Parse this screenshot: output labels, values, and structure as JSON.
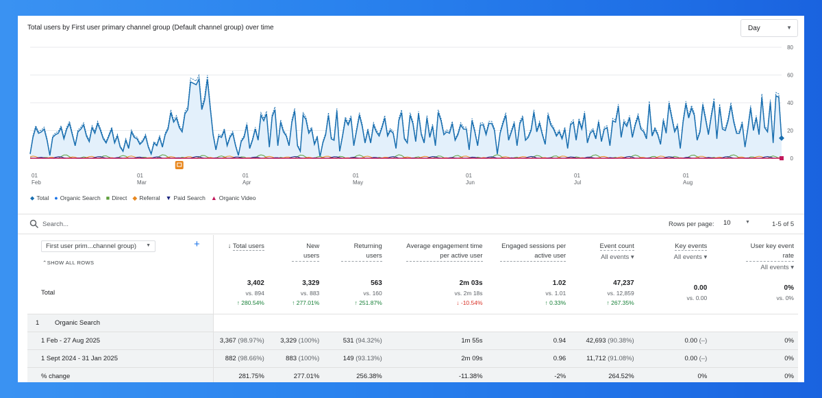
{
  "chart": {
    "title": "Total users by First user primary channel group (Default channel group) over time",
    "granularity": "Day"
  },
  "chart_data": {
    "type": "line",
    "ylim": [
      0,
      80
    ],
    "y_ticks": [
      "80",
      "60",
      "40",
      "20",
      "0"
    ],
    "x_ticks": [
      {
        "day": "01",
        "month": "Feb"
      },
      {
        "day": "01",
        "month": "Mar"
      },
      {
        "day": "01",
        "month": "Apr"
      },
      {
        "day": "01",
        "month": "May"
      },
      {
        "day": "01",
        "month": "Jun"
      },
      {
        "day": "01",
        "month": "Jul"
      },
      {
        "day": "01",
        "month": "Aug"
      }
    ],
    "series": [
      {
        "name": "Total",
        "color": "#1a6fb0",
        "values": [
          3,
          15,
          22,
          18,
          19,
          21,
          13,
          2,
          15,
          17,
          18,
          22,
          14,
          21,
          25,
          17,
          9,
          19,
          21,
          24,
          16,
          12,
          22,
          18,
          25,
          20,
          14,
          11,
          16,
          21,
          11,
          16,
          8,
          5,
          13,
          7,
          19,
          15,
          14,
          10,
          12,
          16,
          8,
          3,
          11,
          9,
          15,
          8,
          17,
          21,
          33,
          26,
          29,
          22,
          19,
          32,
          35,
          55,
          54,
          53,
          57,
          35,
          42,
          57,
          36,
          17,
          6,
          16,
          15,
          20,
          9,
          15,
          18,
          9,
          2,
          12,
          15,
          24,
          7,
          13,
          21,
          13,
          31,
          27,
          32,
          8,
          30,
          35,
          9,
          26,
          19,
          16,
          9,
          26,
          34,
          9,
          5,
          31,
          28,
          18,
          21,
          10,
          15,
          1,
          11,
          17,
          31,
          14,
          13,
          34,
          5,
          16,
          28,
          24,
          29,
          9,
          20,
          31,
          23,
          11,
          20,
          11,
          24,
          19,
          16,
          22,
          29,
          16,
          20,
          18,
          7,
          27,
          33,
          14,
          11,
          31,
          25,
          12,
          32,
          17,
          11,
          29,
          15,
          23,
          9,
          33,
          27,
          17,
          19,
          18,
          25,
          13,
          17,
          24,
          21,
          21,
          6,
          27,
          19,
          9,
          24,
          24,
          17,
          25,
          25,
          20,
          3,
          18,
          25,
          31,
          13,
          19,
          25,
          9,
          25,
          29,
          13,
          15,
          20,
          33,
          19,
          25,
          17,
          10,
          31,
          24,
          21,
          16,
          19,
          14,
          21,
          7,
          24,
          26,
          13,
          27,
          21,
          32,
          11,
          18,
          20,
          14,
          26,
          12,
          21,
          22,
          9,
          27,
          26,
          37,
          15,
          26,
          23,
          29,
          15,
          24,
          30,
          21,
          19,
          14,
          39,
          16,
          21,
          17,
          10,
          27,
          18,
          39,
          29,
          19,
          23,
          7,
          26,
          39,
          29,
          36,
          31,
          13,
          19,
          38,
          28,
          17,
          30,
          41,
          14,
          37,
          21,
          20,
          27,
          38,
          26,
          18,
          18,
          25,
          8,
          21,
          36,
          20,
          29,
          17,
          44,
          22,
          19,
          40,
          11,
          45,
          44,
          14
        ]
      },
      {
        "name": "Organic Search",
        "color": "#4285f4",
        "values": []
      },
      {
        "name": "Direct",
        "color": "#5e9e3c",
        "values": []
      },
      {
        "name": "Referral",
        "color": "#e8871e",
        "values": []
      },
      {
        "name": "Paid Search",
        "color": "#1a237e",
        "values": []
      },
      {
        "name": "Organic Video",
        "color": "#c2185b",
        "values": []
      }
    ]
  },
  "legend": [
    {
      "label": "Total",
      "icon": "pin-icon",
      "color": "#1a6fb0"
    },
    {
      "label": "Organic Search",
      "icon": "circle-icon",
      "color": "#1a73e8"
    },
    {
      "label": "Direct",
      "icon": "square-icon",
      "color": "#5e9e3c"
    },
    {
      "label": "Referral",
      "icon": "diamond-icon",
      "color": "#e8871e"
    },
    {
      "label": "Paid Search",
      "icon": "triangle-down-icon",
      "color": "#1a237e"
    },
    {
      "label": "Organic Video",
      "icon": "triangle-up-icon",
      "color": "#c2185b"
    }
  ],
  "search": {
    "placeholder": "Search..."
  },
  "pagination": {
    "rows_label": "Rows per page:",
    "rows_value": "10",
    "range": "1-5 of 5"
  },
  "table": {
    "dimension_label": "First user prim...channel group)",
    "show_all_rows": "SHOW ALL ROWS",
    "columns": [
      {
        "label": "Total users",
        "sort": "↓"
      },
      {
        "label": "New users"
      },
      {
        "label": "Returning users"
      },
      {
        "label": "Average engagement time per active user"
      },
      {
        "label": "Engaged sessions per active user"
      },
      {
        "label": "Event count",
        "filter": "All events"
      },
      {
        "label": "Key events",
        "filter": "All events"
      },
      {
        "label": "User key event rate",
        "filter": "All events"
      }
    ],
    "total": {
      "label": "Total",
      "cells": [
        {
          "value": "3,402",
          "vs": "vs. 894",
          "change": "↑ 280.54%",
          "dir": "up"
        },
        {
          "value": "3,329",
          "vs": "vs. 883",
          "change": "↑ 277.01%",
          "dir": "up"
        },
        {
          "value": "563",
          "vs": "vs. 160",
          "change": "↑ 251.87%",
          "dir": "up"
        },
        {
          "value": "2m 03s",
          "vs": "vs. 2m 18s",
          "change": "↓ -10.54%",
          "dir": "down"
        },
        {
          "value": "1.02",
          "vs": "vs. 1.01",
          "change": "↑ 0.33%",
          "dir": "up"
        },
        {
          "value": "47,237",
          "vs": "vs. 12,859",
          "change": "↑ 267.35%",
          "dir": "up"
        },
        {
          "value": "0.00",
          "vs": "vs. 0.00",
          "change": "",
          "dir": "none"
        },
        {
          "value": "0%",
          "vs": "vs. 0%",
          "change": "",
          "dir": "none"
        }
      ]
    },
    "group": {
      "index": "1",
      "label": "Organic Search"
    },
    "rows": [
      {
        "label": "1 Feb - 27 Aug 2025",
        "cells": [
          {
            "v": "3,367",
            "p": "(98.97%)"
          },
          {
            "v": "3,329",
            "p": "(100%)"
          },
          {
            "v": "531",
            "p": "(94.32%)"
          },
          {
            "v": "1m 55s",
            "p": ""
          },
          {
            "v": "0.94",
            "p": ""
          },
          {
            "v": "42,693",
            "p": "(90.38%)"
          },
          {
            "v": "0.00",
            "p": "(–)"
          },
          {
            "v": "0%",
            "p": ""
          }
        ]
      },
      {
        "label": "1 Sept 2024 - 31 Jan 2025",
        "cells": [
          {
            "v": "882",
            "p": "(98.66%)"
          },
          {
            "v": "883",
            "p": "(100%)"
          },
          {
            "v": "149",
            "p": "(93.13%)"
          },
          {
            "v": "2m 09s",
            "p": ""
          },
          {
            "v": "0.96",
            "p": ""
          },
          {
            "v": "11,712",
            "p": "(91.08%)"
          },
          {
            "v": "0.00",
            "p": "(–)"
          },
          {
            "v": "0%",
            "p": ""
          }
        ]
      },
      {
        "label": "% change",
        "cells": [
          {
            "v": "281.75%",
            "p": ""
          },
          {
            "v": "277.01%",
            "p": ""
          },
          {
            "v": "256.38%",
            "p": ""
          },
          {
            "v": "-11.38%",
            "p": ""
          },
          {
            "v": "-2%",
            "p": ""
          },
          {
            "v": "264.52%",
            "p": ""
          },
          {
            "v": "0%",
            "p": ""
          },
          {
            "v": "0%",
            "p": ""
          }
        ]
      }
    ]
  }
}
